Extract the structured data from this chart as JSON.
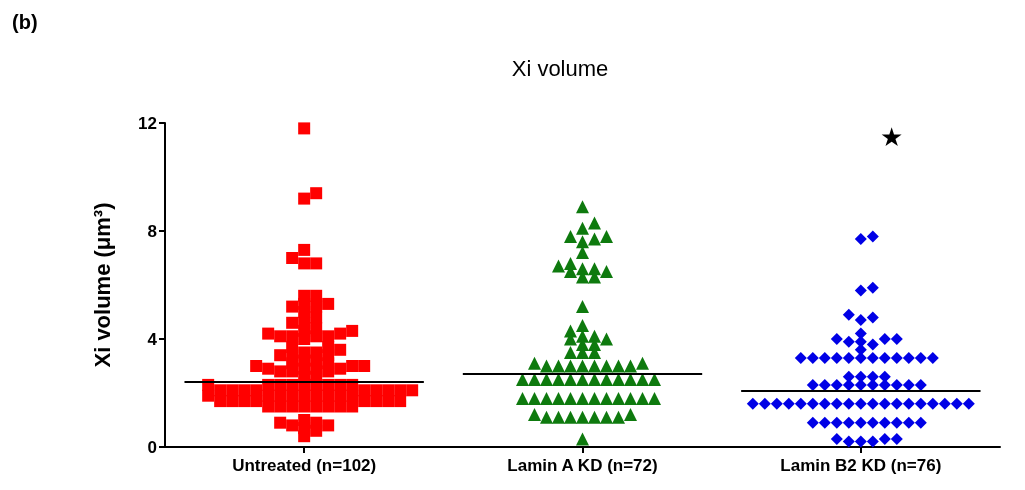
{
  "chart_data": {
    "type": "scatter",
    "title": "Xi volume",
    "ylabel": "Xi volume (μm³)",
    "annotations": [
      "(b)",
      "★"
    ],
    "categories": [
      "Untreated (n=102)",
      "Lamin A KD (n=72)",
      "Lamin B2 KD (n=76)"
    ],
    "ylim": [
      0,
      12
    ],
    "yticks": [
      0,
      4,
      8,
      12
    ],
    "grid": false,
    "ref_lines": [
      {
        "axis": "y",
        "value": 2.4,
        "color": "#000000"
      },
      {
        "axis": "y",
        "value": 2.7,
        "color": "#000000"
      },
      {
        "axis": "y",
        "value": 2.1,
        "color": "#000000"
      }
    ],
    "series": [
      {
        "color": "#ff0000",
        "marker": "square",
        "x": [
          "Untreated (n=102)",
          "Untreated (n=102)",
          "Untreated (n=102)",
          "Untreated (n=102)",
          "Untreated (n=102)",
          "Untreated (n=102)",
          "Untreated (n=102)",
          "Untreated (n=102)",
          "Untreated (n=102)",
          "Untreated (n=102)",
          "Untreated (n=102)",
          "Untreated (n=102)",
          "Untreated (n=102)",
          "Untreated (n=102)",
          "Untreated (n=102)",
          "Untreated (n=102)",
          "Untreated (n=102)",
          "Untreated (n=102)",
          "Untreated (n=102)",
          "Untreated (n=102)",
          "Untreated (n=102)",
          "Untreated (n=102)",
          "Untreated (n=102)",
          "Untreated (n=102)",
          "Untreated (n=102)",
          "Untreated (n=102)",
          "Untreated (n=102)",
          "Untreated (n=102)",
          "Untreated (n=102)",
          "Untreated (n=102)",
          "Untreated (n=102)",
          "Untreated (n=102)",
          "Untreated (n=102)",
          "Untreated (n=102)",
          "Untreated (n=102)",
          "Untreated (n=102)",
          "Untreated (n=102)",
          "Untreated (n=102)",
          "Untreated (n=102)",
          "Untreated (n=102)",
          "Untreated (n=102)",
          "Untreated (n=102)",
          "Untreated (n=102)",
          "Untreated (n=102)",
          "Untreated (n=102)",
          "Untreated (n=102)",
          "Untreated (n=102)",
          "Untreated (n=102)",
          "Untreated (n=102)",
          "Untreated (n=102)",
          "Untreated (n=102)",
          "Untreated (n=102)",
          "Untreated (n=102)",
          "Untreated (n=102)",
          "Untreated (n=102)",
          "Untreated (n=102)",
          "Untreated (n=102)",
          "Untreated (n=102)",
          "Untreated (n=102)",
          "Untreated (n=102)",
          "Untreated (n=102)",
          "Untreated (n=102)",
          "Untreated (n=102)",
          "Untreated (n=102)",
          "Untreated (n=102)",
          "Untreated (n=102)",
          "Untreated (n=102)",
          "Untreated (n=102)",
          "Untreated (n=102)",
          "Untreated (n=102)",
          "Untreated (n=102)",
          "Untreated (n=102)",
          "Untreated (n=102)",
          "Untreated (n=102)",
          "Untreated (n=102)",
          "Untreated (n=102)",
          "Untreated (n=102)",
          "Untreated (n=102)",
          "Untreated (n=102)",
          "Untreated (n=102)",
          "Untreated (n=102)",
          "Untreated (n=102)",
          "Untreated (n=102)",
          "Untreated (n=102)",
          "Untreated (n=102)",
          "Untreated (n=102)",
          "Untreated (n=102)",
          "Untreated (n=102)",
          "Untreated (n=102)",
          "Untreated (n=102)",
          "Untreated (n=102)",
          "Untreated (n=102)",
          "Untreated (n=102)",
          "Untreated (n=102)",
          "Untreated (n=102)",
          "Untreated (n=102)",
          "Untreated (n=102)",
          "Untreated (n=102)",
          "Untreated (n=102)",
          "Untreated (n=102)",
          "Untreated (n=102)",
          "Untreated (n=102)"
        ],
        "values": [
          11.8,
          9.4,
          9.2,
          7.3,
          7.0,
          6.8,
          6.8,
          5.6,
          5.6,
          5.3,
          5.2,
          5.2,
          5.3,
          5.0,
          4.6,
          4.4,
          4.3,
          4.2,
          4.6,
          4.2,
          4.3,
          4.8,
          4.1,
          4.1,
          4.0,
          4.1,
          4.1,
          3.7,
          3.5,
          3.4,
          3.4,
          3.4,
          3.5,
          3.6,
          3.7,
          3.2,
          3.1,
          3.0,
          3.0,
          2.9,
          2.9,
          2.9,
          2.9,
          3.0,
          3.1,
          3.2,
          2.8,
          2.8,
          2.8,
          2.6,
          2.6,
          2.3,
          2.3,
          2.3,
          2.3,
          2.3,
          2.3,
          2.3,
          2.3,
          2.3,
          2.1,
          2.1,
          2.1,
          2.1,
          2.1,
          2.1,
          2.1,
          2.1,
          2.1,
          1.9,
          1.9,
          1.9,
          1.9,
          1.9,
          1.9,
          1.9,
          1.9,
          1.9,
          1.7,
          1.7,
          1.7,
          1.7,
          1.7,
          1.7,
          1.7,
          1.7,
          1.5,
          1.5,
          1.5,
          1.5,
          1.5,
          1.5,
          1.5,
          1.5,
          1.0,
          0.9,
          0.8,
          0.6,
          0.4,
          0.7,
          0.9,
          0.8
        ]
      },
      {
        "color": "#0e7a0e",
        "marker": "triangle",
        "x": [
          "Lamin A KD (n=72)",
          "Lamin A KD (n=72)",
          "Lamin A KD (n=72)",
          "Lamin A KD (n=72)",
          "Lamin A KD (n=72)",
          "Lamin A KD (n=72)",
          "Lamin A KD (n=72)",
          "Lamin A KD (n=72)",
          "Lamin A KD (n=72)",
          "Lamin A KD (n=72)",
          "Lamin A KD (n=72)",
          "Lamin A KD (n=72)",
          "Lamin A KD (n=72)",
          "Lamin A KD (n=72)",
          "Lamin A KD (n=72)",
          "Lamin A KD (n=72)",
          "Lamin A KD (n=72)",
          "Lamin A KD (n=72)",
          "Lamin A KD (n=72)",
          "Lamin A KD (n=72)",
          "Lamin A KD (n=72)",
          "Lamin A KD (n=72)",
          "Lamin A KD (n=72)",
          "Lamin A KD (n=72)",
          "Lamin A KD (n=72)",
          "Lamin A KD (n=72)",
          "Lamin A KD (n=72)",
          "Lamin A KD (n=72)",
          "Lamin A KD (n=72)",
          "Lamin A KD (n=72)",
          "Lamin A KD (n=72)",
          "Lamin A KD (n=72)",
          "Lamin A KD (n=72)",
          "Lamin A KD (n=72)",
          "Lamin A KD (n=72)",
          "Lamin A KD (n=72)",
          "Lamin A KD (n=72)",
          "Lamin A KD (n=72)",
          "Lamin A KD (n=72)",
          "Lamin A KD (n=72)",
          "Lamin A KD (n=72)",
          "Lamin A KD (n=72)",
          "Lamin A KD (n=72)",
          "Lamin A KD (n=72)",
          "Lamin A KD (n=72)",
          "Lamin A KD (n=72)",
          "Lamin A KD (n=72)",
          "Lamin A KD (n=72)",
          "Lamin A KD (n=72)",
          "Lamin A KD (n=72)",
          "Lamin A KD (n=72)",
          "Lamin A KD (n=72)",
          "Lamin A KD (n=72)",
          "Lamin A KD (n=72)",
          "Lamin A KD (n=72)",
          "Lamin A KD (n=72)",
          "Lamin A KD (n=72)",
          "Lamin A KD (n=72)",
          "Lamin A KD (n=72)",
          "Lamin A KD (n=72)",
          "Lamin A KD (n=72)",
          "Lamin A KD (n=72)",
          "Lamin A KD (n=72)",
          "Lamin A KD (n=72)",
          "Lamin A KD (n=72)",
          "Lamin A KD (n=72)",
          "Lamin A KD (n=72)",
          "Lamin A KD (n=72)",
          "Lamin A KD (n=72)",
          "Lamin A KD (n=72)",
          "Lamin A KD (n=72)",
          "Lamin A KD (n=72)"
        ],
        "values": [
          8.9,
          8.3,
          8.1,
          7.8,
          7.7,
          7.6,
          7.8,
          7.2,
          6.8,
          6.6,
          6.5,
          6.3,
          6.3,
          6.5,
          6.6,
          6.7,
          5.2,
          4.5,
          4.3,
          4.1,
          4.0,
          4.0,
          4.1,
          3.8,
          3.8,
          3.5,
          3.5,
          3.5,
          3.1,
          3.0,
          3.0,
          3.0,
          3.0,
          3.0,
          3.0,
          3.0,
          3.0,
          3.1,
          2.5,
          2.5,
          2.5,
          2.5,
          2.5,
          2.5,
          2.5,
          2.5,
          2.5,
          2.5,
          2.5,
          2.5,
          1.8,
          1.8,
          1.8,
          1.8,
          1.8,
          1.8,
          1.8,
          1.8,
          1.8,
          1.8,
          1.8,
          1.8,
          1.2,
          1.1,
          1.1,
          1.1,
          1.1,
          1.1,
          1.1,
          1.1,
          1.2,
          0.3
        ]
      },
      {
        "color": "#0000e6",
        "marker": "diamond",
        "x": [
          "Lamin B2 KD (n=76)",
          "Lamin B2 KD (n=76)",
          "Lamin B2 KD (n=76)",
          "Lamin B2 KD (n=76)",
          "Lamin B2 KD (n=76)",
          "Lamin B2 KD (n=76)",
          "Lamin B2 KD (n=76)",
          "Lamin B2 KD (n=76)",
          "Lamin B2 KD (n=76)",
          "Lamin B2 KD (n=76)",
          "Lamin B2 KD (n=76)",
          "Lamin B2 KD (n=76)",
          "Lamin B2 KD (n=76)",
          "Lamin B2 KD (n=76)",
          "Lamin B2 KD (n=76)",
          "Lamin B2 KD (n=76)",
          "Lamin B2 KD (n=76)",
          "Lamin B2 KD (n=76)",
          "Lamin B2 KD (n=76)",
          "Lamin B2 KD (n=76)",
          "Lamin B2 KD (n=76)",
          "Lamin B2 KD (n=76)",
          "Lamin B2 KD (n=76)",
          "Lamin B2 KD (n=76)",
          "Lamin B2 KD (n=76)",
          "Lamin B2 KD (n=76)",
          "Lamin B2 KD (n=76)",
          "Lamin B2 KD (n=76)",
          "Lamin B2 KD (n=76)",
          "Lamin B2 KD (n=76)",
          "Lamin B2 KD (n=76)",
          "Lamin B2 KD (n=76)",
          "Lamin B2 KD (n=76)",
          "Lamin B2 KD (n=76)",
          "Lamin B2 KD (n=76)",
          "Lamin B2 KD (n=76)",
          "Lamin B2 KD (n=76)",
          "Lamin B2 KD (n=76)",
          "Lamin B2 KD (n=76)",
          "Lamin B2 KD (n=76)",
          "Lamin B2 KD (n=76)",
          "Lamin B2 KD (n=76)",
          "Lamin B2 KD (n=76)",
          "Lamin B2 KD (n=76)",
          "Lamin B2 KD (n=76)",
          "Lamin B2 KD (n=76)",
          "Lamin B2 KD (n=76)",
          "Lamin B2 KD (n=76)",
          "Lamin B2 KD (n=76)",
          "Lamin B2 KD (n=76)",
          "Lamin B2 KD (n=76)",
          "Lamin B2 KD (n=76)",
          "Lamin B2 KD (n=76)",
          "Lamin B2 KD (n=76)",
          "Lamin B2 KD (n=76)",
          "Lamin B2 KD (n=76)",
          "Lamin B2 KD (n=76)",
          "Lamin B2 KD (n=76)",
          "Lamin B2 KD (n=76)",
          "Lamin B2 KD (n=76)",
          "Lamin B2 KD (n=76)",
          "Lamin B2 KD (n=76)",
          "Lamin B2 KD (n=76)",
          "Lamin B2 KD (n=76)",
          "Lamin B2 KD (n=76)",
          "Lamin B2 KD (n=76)",
          "Lamin B2 KD (n=76)",
          "Lamin B2 KD (n=76)",
          "Lamin B2 KD (n=76)",
          "Lamin B2 KD (n=76)",
          "Lamin B2 KD (n=76)",
          "Lamin B2 KD (n=76)",
          "Lamin B2 KD (n=76)",
          "Lamin B2 KD (n=76)",
          "Lamin B2 KD (n=76)",
          "Lamin B2 KD (n=76)"
        ],
        "values": [
          7.7,
          7.8,
          5.9,
          5.8,
          4.8,
          4.7,
          4.9,
          4.2,
          4.0,
          3.9,
          3.8,
          3.9,
          4.0,
          4.0,
          3.6,
          3.3,
          3.3,
          3.3,
          3.3,
          3.3,
          3.3,
          3.3,
          3.3,
          3.3,
          3.3,
          3.3,
          3.3,
          2.6,
          2.6,
          2.6,
          2.6,
          2.3,
          2.3,
          2.3,
          2.3,
          2.3,
          2.3,
          2.3,
          2.3,
          2.3,
          2.3,
          1.6,
          1.6,
          1.6,
          1.6,
          1.6,
          1.6,
          1.6,
          1.6,
          1.6,
          1.6,
          1.6,
          1.6,
          1.6,
          1.6,
          1.6,
          1.6,
          1.6,
          1.6,
          1.6,
          0.9,
          0.9,
          0.9,
          0.9,
          0.9,
          0.9,
          0.9,
          0.9,
          0.9,
          0.9,
          0.3,
          0.2,
          0.3,
          0.2,
          0.3,
          0.2
        ]
      }
    ]
  }
}
